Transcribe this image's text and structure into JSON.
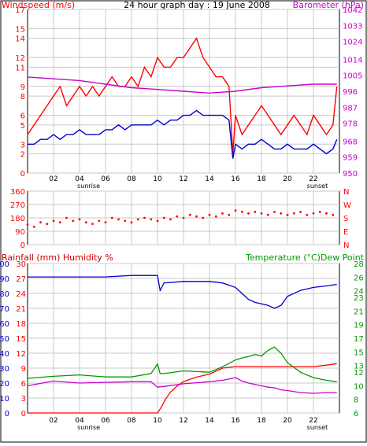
{
  "chart_data": [
    {
      "type": "line",
      "title": "24 hour graph day : 19 June 2008",
      "ylabel": "Windspeed (m/s)",
      "y2label": "Barometer (hPa)",
      "x_ticks": [
        "02",
        "04",
        "06",
        "08",
        "10",
        "12",
        "14",
        "16",
        "18",
        "20",
        "22"
      ],
      "x_ticks_pos": [
        2,
        4,
        6,
        8,
        10,
        12,
        14,
        16,
        18,
        20,
        22
      ],
      "x_annotations": [
        {
          "text": "sunrise",
          "x": 4.7
        },
        {
          "text": "sunset",
          "x": 22.3
        }
      ],
      "xlim": [
        0,
        24
      ],
      "ylim": [
        0,
        17
      ],
      "y_ticks": [
        0,
        2,
        3,
        5,
        6,
        8,
        9,
        11,
        12,
        14,
        15,
        17
      ],
      "y2lim": [
        950,
        1042
      ],
      "y2_ticks": [
        950,
        959,
        968,
        978,
        987,
        996,
        1005,
        1014,
        1024,
        1033,
        1042
      ],
      "grid": true,
      "series": [
        {
          "name": "Windspeed gust",
          "axis": "left",
          "color": "#ff0000",
          "x": [
            0,
            0.5,
            1,
            1.5,
            2,
            2.5,
            3,
            3.5,
            4,
            4.5,
            5,
            5.5,
            6,
            6.5,
            7,
            7.5,
            8,
            8.5,
            9,
            9.5,
            10,
            10.5,
            11,
            11.5,
            12,
            12.5,
            13,
            13.5,
            14,
            14.5,
            15,
            15.5,
            15.8,
            16,
            16.5,
            17,
            17.5,
            18,
            18.5,
            19,
            19.5,
            20,
            20.5,
            21,
            21.5,
            22,
            22.5,
            23,
            23.5,
            23.8
          ],
          "values": [
            4,
            5,
            6,
            7,
            8,
            9,
            7,
            8,
            9,
            8,
            9,
            8,
            9,
            10,
            9,
            9,
            10,
            9,
            11,
            10,
            12,
            11,
            11,
            12,
            12,
            13,
            14,
            12,
            11,
            10,
            10,
            9,
            2,
            6,
            4,
            5,
            6,
            7,
            6,
            5,
            4,
            5,
            6,
            5,
            4,
            6,
            5,
            4,
            5,
            9
          ]
        },
        {
          "name": "Windspeed average",
          "axis": "left",
          "color": "#0000cc",
          "x": [
            0,
            0.5,
            1,
            1.5,
            2,
            2.5,
            3,
            3.5,
            4,
            4.5,
            5,
            5.5,
            6,
            6.5,
            7,
            7.5,
            8,
            8.5,
            9,
            9.5,
            10,
            10.5,
            11,
            11.5,
            12,
            12.5,
            13,
            13.5,
            14,
            14.5,
            15,
            15.5,
            15.8,
            16,
            16.5,
            17,
            17.5,
            18,
            18.5,
            19,
            19.5,
            20,
            20.5,
            21,
            21.5,
            22,
            22.5,
            23,
            23.5,
            23.8
          ],
          "values": [
            3,
            3,
            3.5,
            3.5,
            4,
            3.5,
            4,
            4,
            4.5,
            4,
            4,
            4,
            4.5,
            4.5,
            5,
            4.5,
            5,
            5,
            5,
            5,
            5.5,
            5,
            5.5,
            5.5,
            6,
            6,
            6.5,
            6,
            6,
            6,
            6,
            5.5,
            1.5,
            3,
            2.5,
            3,
            3,
            3.5,
            3,
            2.5,
            2.5,
            3,
            2.5,
            2.5,
            2.5,
            3,
            2.5,
            2,
            2.5,
            3.5
          ]
        },
        {
          "name": "Barometer",
          "axis": "right",
          "color": "#cc00cc",
          "x": [
            0,
            2,
            4,
            6,
            8,
            10,
            12,
            14,
            16,
            18,
            20,
            22,
            23.8
          ],
          "values": [
            1004,
            1003,
            1002,
            1000,
            998,
            997,
            996,
            995,
            996,
            998,
            999,
            1000,
            1000
          ]
        }
      ]
    },
    {
      "type": "scatter",
      "title": "",
      "ylabel": "Wind direction",
      "xlim": [
        0,
        24
      ],
      "ylim": [
        0,
        360
      ],
      "y_ticks": [
        0,
        90,
        180,
        270,
        360
      ],
      "y2_labels": [
        "N",
        "E",
        "S",
        "W",
        "N"
      ],
      "x_ticks": [
        "02",
        "04",
        "06",
        "08",
        "10",
        "12",
        "14",
        "16",
        "18",
        "20",
        "22"
      ],
      "x_ticks_pos": [
        2,
        4,
        6,
        8,
        10,
        12,
        14,
        16,
        18,
        20,
        22
      ],
      "grid": true,
      "series": [
        {
          "name": "Wind direction",
          "color": "#ff0000",
          "x": [
            0,
            0.5,
            1,
            1.5,
            2,
            2.5,
            3,
            3.5,
            4,
            4.5,
            5,
            5.5,
            6,
            6.5,
            7,
            7.5,
            8,
            8.5,
            9,
            9.5,
            10,
            10.5,
            11,
            11.5,
            12,
            12.5,
            13,
            13.5,
            14,
            14.5,
            15,
            15.5,
            16,
            16.5,
            17,
            17.5,
            18,
            18.5,
            19,
            19.5,
            20,
            20.5,
            21,
            21.5,
            22,
            22.5,
            23,
            23.5
          ],
          "values": [
            135,
            120,
            150,
            140,
            160,
            150,
            180,
            160,
            170,
            150,
            140,
            160,
            150,
            180,
            170,
            160,
            150,
            170,
            180,
            170,
            160,
            180,
            170,
            190,
            180,
            200,
            190,
            180,
            200,
            190,
            210,
            200,
            230,
            220,
            210,
            220,
            210,
            200,
            220,
            210,
            200,
            210,
            220,
            200,
            210,
            220,
            210,
            200
          ]
        }
      ]
    },
    {
      "type": "line",
      "title": "",
      "ylabel": "Rainfall (mm)  Humidity %",
      "y2label": "Temperature (°C)Dew Point",
      "xlim": [
        0,
        24
      ],
      "x_ticks": [
        "02",
        "04",
        "06",
        "08",
        "10",
        "12",
        "14",
        "16",
        "18",
        "20",
        "22"
      ],
      "x_ticks_pos": [
        2,
        4,
        6,
        8,
        10,
        12,
        14,
        16,
        18,
        20,
        22
      ],
      "x_annotations": [
        {
          "text": "sunrise",
          "x": 4.7
        },
        {
          "text": "sunset",
          "x": 22.3
        }
      ],
      "y_ticks_humidity": [
        0,
        10,
        20,
        30,
        40,
        50,
        60,
        70,
        80,
        90,
        100
      ],
      "y_ticks_rainfall": [
        0,
        3,
        6,
        9,
        12,
        15,
        18,
        21,
        24,
        27,
        30
      ],
      "humidity_ylim": [
        0,
        100
      ],
      "y2lim": [
        6,
        28
      ],
      "y2_ticks": [
        6,
        8,
        10,
        12,
        13,
        15,
        17,
        19,
        21,
        23,
        24,
        26,
        28
      ],
      "grid": true,
      "series": [
        {
          "name": "Humidity",
          "axis": "humidity",
          "color": "#0000cc",
          "x": [
            0,
            2,
            4,
            6,
            8,
            9.5,
            10,
            10.2,
            10.5,
            12,
            14,
            15,
            16,
            16.5,
            17,
            17.5,
            18,
            18.5,
            19,
            19.5,
            20,
            21,
            22,
            23,
            23.8
          ],
          "values": [
            91,
            91,
            91,
            91,
            92,
            92,
            92,
            82,
            87,
            88,
            88,
            87,
            84,
            80,
            76,
            74,
            73,
            72,
            70,
            72,
            78,
            82,
            84,
            85,
            86
          ]
        },
        {
          "name": "Rainfall",
          "axis": "humidity",
          "color": "#ff0000",
          "x": [
            0,
            10,
            10.3,
            10.6,
            11,
            11.5,
            12,
            13,
            14,
            15,
            16,
            18,
            20,
            22,
            23,
            23.8
          ],
          "values": [
            0,
            0,
            4,
            9,
            14,
            18,
            21,
            24,
            26,
            30,
            31,
            31,
            31,
            31,
            32,
            33
          ]
        },
        {
          "name": "Temperature",
          "axis": "right",
          "color": "#009900",
          "x": [
            0,
            2,
            4,
            6,
            8,
            9.5,
            10,
            10.2,
            10.5,
            12,
            14,
            15,
            16,
            16.5,
            17,
            17.5,
            18,
            18.5,
            19,
            19.5,
            20,
            21,
            22,
            23,
            23.8
          ],
          "values": [
            11.1,
            11.4,
            11.6,
            11.3,
            11.3,
            11.8,
            13.2,
            11.8,
            11.8,
            12.2,
            12.0,
            12.8,
            13.8,
            14.1,
            14.3,
            14.6,
            14.4,
            15.2,
            15.7,
            14.8,
            13.4,
            12.0,
            11.2,
            10.8,
            10.6
          ]
        },
        {
          "name": "Dew Point",
          "axis": "right",
          "color": "#cc00cc",
          "x": [
            0,
            2,
            4,
            6,
            8,
            9.5,
            10,
            10.5,
            12,
            14,
            15,
            16,
            16.5,
            17,
            17.5,
            18,
            18.5,
            19,
            19.5,
            20,
            21,
            22,
            23,
            23.8
          ],
          "values": [
            10.0,
            10.7,
            10.4,
            10.5,
            10.6,
            10.6,
            9.8,
            9.9,
            10.3,
            10.6,
            10.8,
            11.2,
            10.7,
            10.4,
            10.2,
            10.0,
            9.8,
            9.7,
            9.4,
            9.3,
            9.0,
            8.9,
            9.0,
            9.0
          ]
        }
      ]
    }
  ]
}
